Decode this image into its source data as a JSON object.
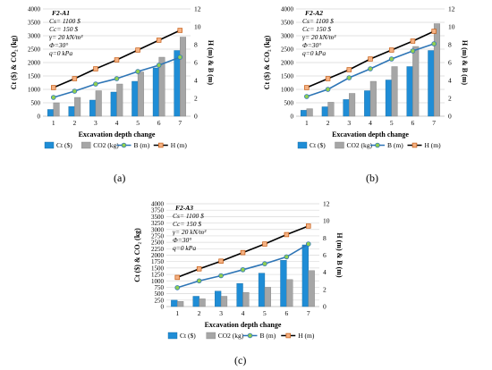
{
  "figure": {
    "panels": [
      {
        "label": "(a)"
      },
      {
        "label": "(b)"
      },
      {
        "label": "(c)"
      }
    ]
  },
  "chart_data": [
    {
      "type": "bar",
      "combo": "bar+line",
      "inset_text": [
        "F2-A1",
        "Cs= 1100 $",
        "Cc= 150 $",
        "γ= 20 kN/m³",
        "Φ=30°",
        "q=0 kPa"
      ],
      "categories": [
        "1",
        "2",
        "3",
        "4",
        "5",
        "6",
        "7"
      ],
      "xlabel": "Excavation depth change",
      "ylabel": "Ct ($) & CO₂ (kg)",
      "ylabel2": "H (m) & B (m)",
      "yticks": [
        "0",
        "500",
        "1000",
        "1500",
        "2000",
        "2500",
        "3000",
        "3500",
        "4000"
      ],
      "y2ticks": [
        "0",
        "2",
        "4",
        "6",
        "8",
        "10",
        "12"
      ],
      "ylim": [
        0,
        4000
      ],
      "y2lim": [
        0,
        12
      ],
      "grid": true,
      "legend_position": "bottom",
      "series": [
        {
          "name": "Ct ($)",
          "kind": "bar",
          "axis": "left",
          "color": "#1f8dd6",
          "values": [
            250,
            360,
            600,
            900,
            1300,
            1800,
            2450
          ]
        },
        {
          "name": "CO2 (kg)",
          "kind": "bar",
          "axis": "left",
          "color": "#a6a6a6",
          "values": [
            500,
            700,
            950,
            1200,
            1650,
            2200,
            2950
          ]
        },
        {
          "name": "B (m)",
          "kind": "line",
          "axis": "right",
          "color": "#2e75b6",
          "marker_fill": "#92d050",
          "values": [
            2.1,
            2.8,
            3.6,
            4.2,
            5.0,
            5.7,
            6.6
          ]
        },
        {
          "name": "H (m)",
          "kind": "line",
          "axis": "right",
          "color": "#000000",
          "marker_fill": "#f4b183",
          "values": [
            3.2,
            4.2,
            5.3,
            6.3,
            7.4,
            8.5,
            9.6
          ]
        }
      ]
    },
    {
      "type": "bar",
      "combo": "bar+line",
      "inset_text": [
        "F2-A2",
        "Cs= 1100 $",
        "Cc= 150 $",
        "γ= 20 kN/m³",
        "Φ=30°",
        "q=0 kPa"
      ],
      "categories": [
        "1",
        "2",
        "3",
        "4",
        "5",
        "6",
        "7"
      ],
      "xlabel": "Excavation depth change",
      "ylabel": "Ct ($) & CO₂ (kg)",
      "ylabel2": "H (m) & B (m)",
      "yticks": [
        "0",
        "500",
        "1000",
        "1500",
        "2000",
        "2500",
        "3000",
        "3500",
        "4000"
      ],
      "y2ticks": [
        "0",
        "2",
        "4",
        "6",
        "8",
        "10",
        "12"
      ],
      "ylim": [
        0,
        4000
      ],
      "y2lim": [
        0,
        12
      ],
      "grid": true,
      "legend_position": "bottom",
      "series": [
        {
          "name": "Ct ($)",
          "kind": "bar",
          "axis": "left",
          "color": "#1f8dd6",
          "values": [
            220,
            350,
            620,
            950,
            1350,
            1850,
            2450
          ]
        },
        {
          "name": "CO2 (kg)",
          "kind": "bar",
          "axis": "left",
          "color": "#a6a6a6",
          "values": [
            280,
            520,
            850,
            1300,
            1850,
            2600,
            3450
          ]
        },
        {
          "name": "B (m)",
          "kind": "line",
          "axis": "right",
          "color": "#2e75b6",
          "marker_fill": "#92d050",
          "values": [
            2.2,
            3.0,
            4.3,
            5.3,
            6.4,
            7.3,
            8.1
          ]
        },
        {
          "name": "H (m)",
          "kind": "line",
          "axis": "right",
          "color": "#000000",
          "marker_fill": "#f4b183",
          "values": [
            3.2,
            4.2,
            5.2,
            6.4,
            7.4,
            8.4,
            9.5
          ]
        }
      ]
    },
    {
      "type": "bar",
      "combo": "bar+line",
      "inset_text": [
        "F2-A3",
        "Cs= 1100 $",
        "Cc= 150 $",
        "γ= 20 kN/m³",
        "Φ=30°",
        "q=0 kPa"
      ],
      "categories": [
        "1",
        "2",
        "3",
        "4",
        "5",
        "6",
        "7"
      ],
      "xlabel": "Excavation depth change",
      "ylabel": "Ct ($) & CO₂ (kg)",
      "ylabel2": "H (m) & B (m)",
      "yticks": [
        "0",
        "250",
        "500",
        "750",
        "1000",
        "1250",
        "1500",
        "1750",
        "2000",
        "2250",
        "2500",
        "2750",
        "3000",
        "3250",
        "3500",
        "3750",
        "4000"
      ],
      "y2ticks": [
        "0",
        "2",
        "4",
        "6",
        "8",
        "10",
        "12"
      ],
      "ylim": [
        0,
        4000
      ],
      "y2lim": [
        0,
        12
      ],
      "grid": true,
      "legend_position": "bottom",
      "series": [
        {
          "name": "Ct ($)",
          "kind": "bar",
          "axis": "left",
          "color": "#1f8dd6",
          "values": [
            250,
            400,
            600,
            900,
            1300,
            1800,
            2400
          ]
        },
        {
          "name": "CO2 (kg)",
          "kind": "bar",
          "axis": "left",
          "color": "#a6a6a6",
          "values": [
            200,
            300,
            400,
            550,
            750,
            1050,
            1400
          ]
        },
        {
          "name": "B (m)",
          "kind": "line",
          "axis": "right",
          "color": "#2e75b6",
          "marker_fill": "#92d050",
          "values": [
            2.2,
            3.0,
            3.6,
            4.3,
            5.0,
            5.8,
            7.3
          ]
        },
        {
          "name": "H (m)",
          "kind": "line",
          "axis": "right",
          "color": "#000000",
          "marker_fill": "#f4b183",
          "values": [
            3.4,
            4.4,
            5.3,
            6.3,
            7.3,
            8.4,
            9.4
          ]
        }
      ]
    }
  ]
}
